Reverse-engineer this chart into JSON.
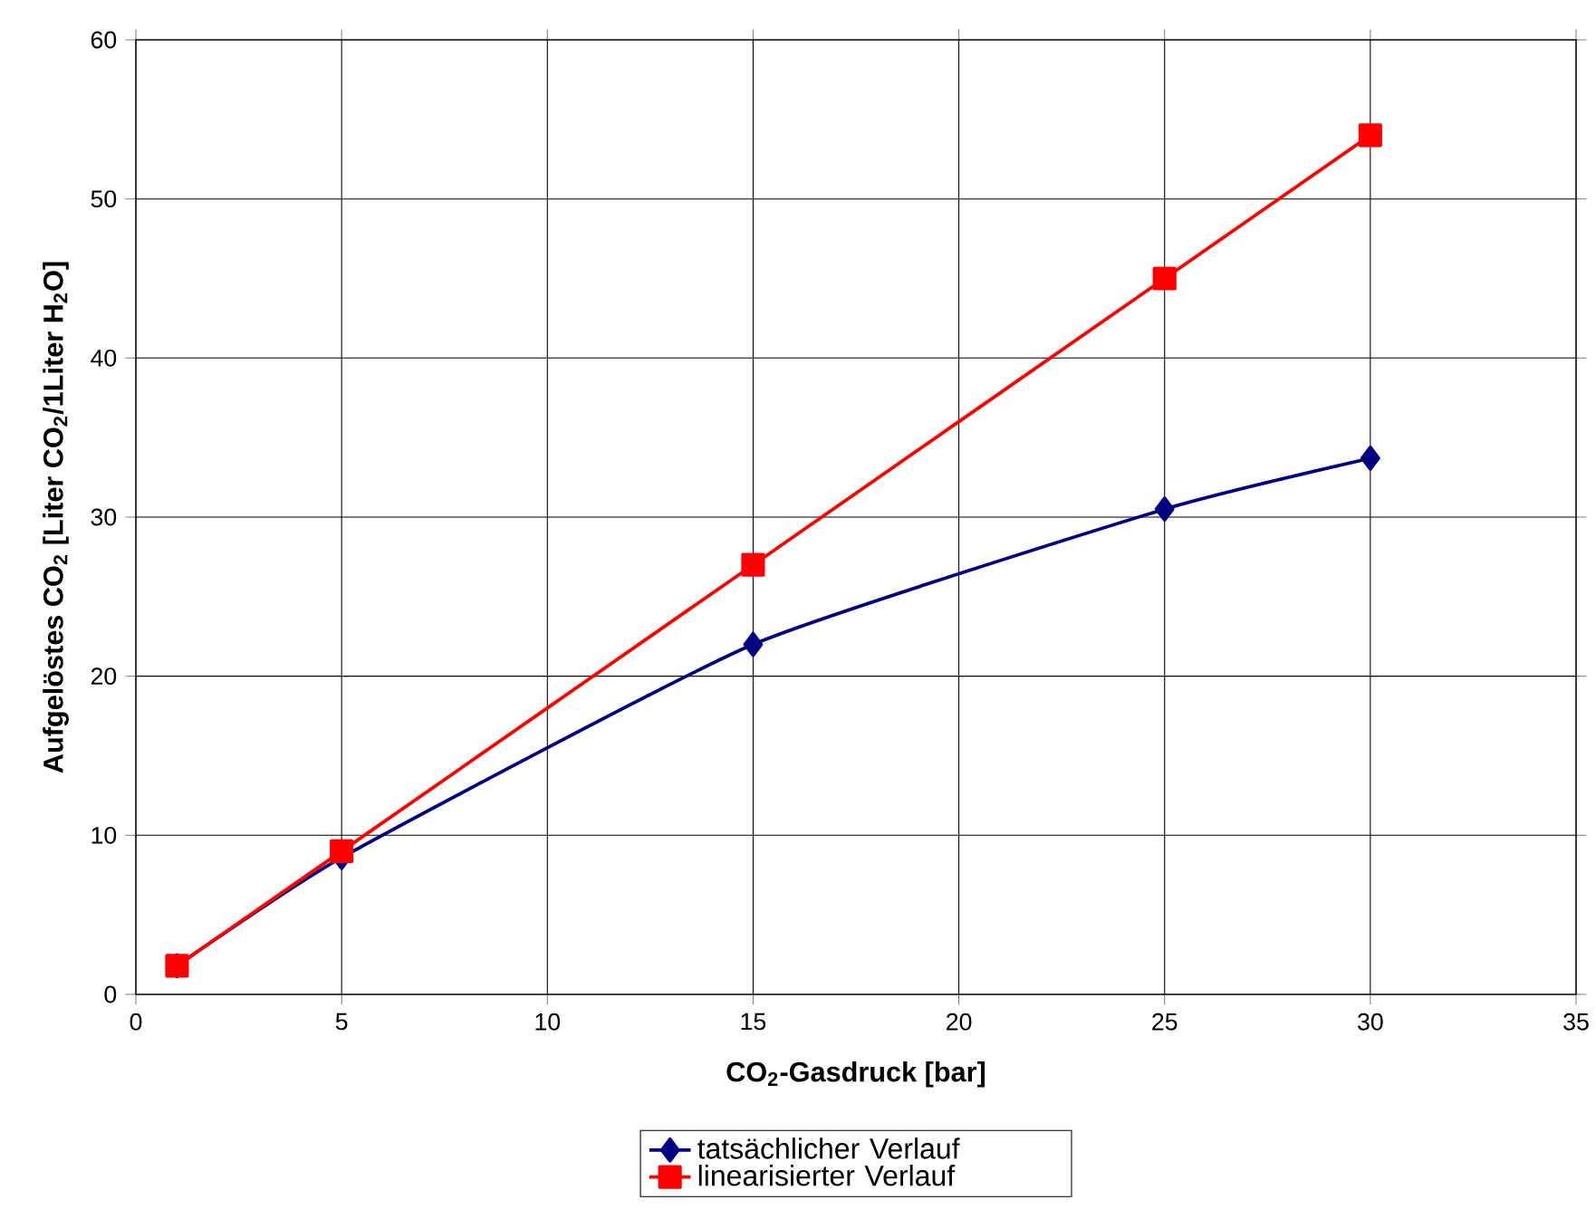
{
  "chart_data": {
    "type": "line",
    "xlabel": "CO$_{2}$-Gasdruck [bar]",
    "ylabel": "Aufgelöstes CO$_{2}$ [Liter CO$_{2}$/1Liter H$_{2}$O]",
    "x": [
      1,
      5,
      15,
      25,
      30
    ],
    "series": [
      {
        "name": "tatsächlicher Verlauf",
        "color": "#000080",
        "marker": "diamond",
        "values": [
          1.8,
          8.6,
          22,
          30.5,
          33.7
        ]
      },
      {
        "name": "linearisierter Verlauf",
        "color": "#ff0000",
        "marker": "square",
        "values": [
          1.8,
          9,
          27,
          45,
          54
        ]
      }
    ],
    "xlim": [
      0,
      35
    ],
    "xticks": [
      0,
      5,
      10,
      15,
      20,
      25,
      30,
      35
    ],
    "ylim": [
      0,
      60
    ],
    "yticks": [
      0,
      10,
      20,
      30,
      40,
      50,
      60
    ],
    "grid": true,
    "legend": "bottom",
    "line_style": "solid"
  }
}
